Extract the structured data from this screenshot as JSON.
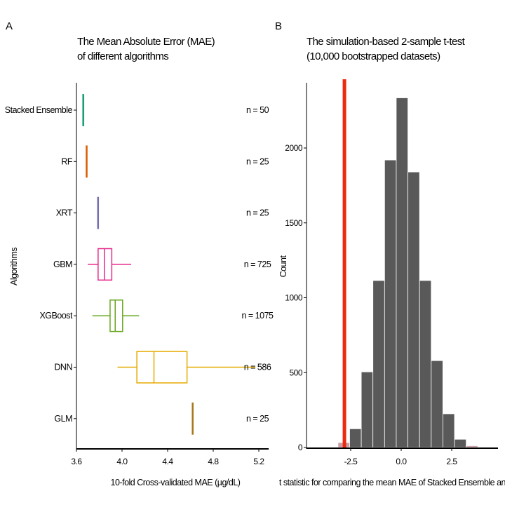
{
  "chart_data": [
    {
      "type": "box",
      "panel_label": "A",
      "title": [
        "The Mean Absolute Error (MAE)",
        "of different algorithms"
      ],
      "xlabel": "10-fold Cross-validated MAE (µg/dL)",
      "ylabel": "Algorithms",
      "xlim": [
        3.6,
        5.29
      ],
      "xticks": [
        "3.6",
        "4.0",
        "4.4",
        "4.8",
        "5.2"
      ],
      "xtick_values": [
        3.6,
        4.0,
        4.4,
        4.8,
        5.2
      ],
      "grid": false,
      "series": [
        {
          "name": "Stacked Ensemble",
          "color": "#1b9e77",
          "min": 3.655,
          "q1": 3.655,
          "median": 3.66,
          "q3": 3.665,
          "max": 3.665,
          "n_label": "n = 50"
        },
        {
          "name": "RF",
          "color": "#d95f02",
          "min": 3.685,
          "q1": 3.685,
          "median": 3.687,
          "q3": 3.689,
          "max": 3.689,
          "n_label": "n = 25"
        },
        {
          "name": "XRT",
          "color": "#7570b3",
          "min": 3.785,
          "q1": 3.785,
          "median": 3.787,
          "q3": 3.789,
          "max": 3.789,
          "n_label": "n = 25"
        },
        {
          "name": "GBM",
          "color": "#e7298a",
          "min": 3.7,
          "q1": 3.79,
          "median": 3.845,
          "q3": 3.91,
          "max": 4.08,
          "n_label": "n = 725"
        },
        {
          "name": "XGBoost",
          "color": "#66a61e",
          "min": 3.74,
          "q1": 3.895,
          "median": 3.94,
          "q3": 4.005,
          "max": 4.15,
          "n_label": "n = 1075"
        },
        {
          "name": "DNN",
          "color": "#e6ab02",
          "min": 3.96,
          "q1": 4.13,
          "median": 4.28,
          "q3": 4.57,
          "max": 5.17,
          "n_label": "n = 586"
        },
        {
          "name": "GLM",
          "color": "#a6761d",
          "min": 4.615,
          "q1": 4.615,
          "median": 4.617,
          "q3": 4.619,
          "max": 4.619,
          "n_label": "n = 25"
        }
      ]
    },
    {
      "type": "bar",
      "subtype": "histogram",
      "panel_label": "B",
      "title": [
        "The simulation-based 2-sample t-test",
        "(10,000 bootstrapped datasets)"
      ],
      "xlabel": "t statistic for comparing the mean MAE of Stacked Ensemble and RF",
      "ylabel": "Count",
      "xlim": [
        -4.6,
        4.7
      ],
      "ylim": [
        0,
        2450
      ],
      "xticks": [
        "-2.5",
        "0.0",
        "2.5"
      ],
      "xtick_values": [
        -2.5,
        0,
        2.5
      ],
      "yticks": [
        "0",
        "500",
        "1000",
        "1500",
        "2000"
      ],
      "ytick_values": [
        0,
        500,
        1000,
        1500,
        2000
      ],
      "bin_start": -3.13,
      "bin_width": 0.577,
      "counts": [
        33,
        125,
        505,
        1115,
        1920,
        2335,
        1840,
        1115,
        580,
        225,
        55,
        12
      ],
      "bar_color": "#595959",
      "tail_color": "#c9a0a8",
      "tail_bins": [
        0,
        11
      ],
      "observed_t": -2.81,
      "observed_color": "#ee2a0e"
    }
  ]
}
